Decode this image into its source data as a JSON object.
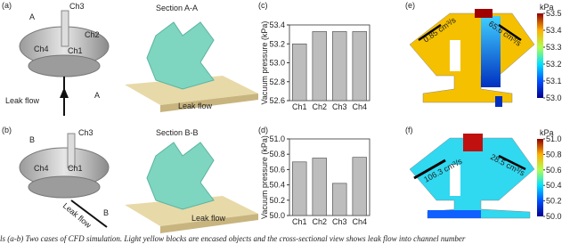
{
  "panel_labels": [
    "(a)",
    "(b)",
    "(c)",
    "(d)",
    "(e)",
    "(f)"
  ],
  "diagram_a": {
    "labels": [
      "Ch3",
      "A",
      "Ch2",
      "Ch4",
      "Ch1",
      "A"
    ],
    "flow": "Leak flow",
    "section": "Section A-A",
    "section_flow": "Leak flow"
  },
  "diagram_b": {
    "labels": [
      "Ch3",
      "B",
      "Ch4",
      "Ch1",
      "B"
    ],
    "flow": "Leak flow",
    "section": "Section B-B",
    "section_flow": "Leak flow"
  },
  "chart_data": [
    {
      "type": "bar",
      "ylabel": "Vacuum pressure (kPa)",
      "categories": [
        "Ch1",
        "Ch2",
        "Ch3",
        "Ch4"
      ],
      "values": [
        53.2,
        53.33,
        53.33,
        53.33
      ],
      "color": "#bdbdbd",
      "ylim": [
        52.6,
        53.4
      ],
      "yticks": [
        52.6,
        52.8,
        {
          "value": 53.0,
          "label": "53.0"
        },
        53.2,
        53.4
      ]
    },
    {
      "type": "bar",
      "ylabel": "Vacuum pressure (kPa)",
      "categories": [
        "Ch1",
        "Ch2",
        "Ch3",
        "Ch4"
      ],
      "values": [
        50.7,
        50.75,
        50.42,
        50.76
      ],
      "color": "#bdbdbd",
      "ylim": [
        50.0,
        51.0
      ],
      "yticks": [
        {
          "value": 50.0,
          "label": "50.0"
        },
        50.2,
        50.4,
        50.6,
        50.8,
        {
          "value": 51.0,
          "label": "51.0"
        }
      ]
    }
  ],
  "colorbars": [
    {
      "unit": "kPa",
      "lim": [
        53.0,
        53.5
      ],
      "ticks": [
        {
          "value": 53.0,
          "label": "53.0"
        },
        53.1,
        53.2,
        53.3,
        53.4,
        53.5
      ]
    },
    {
      "unit": "kPa",
      "lim": [
        50.0,
        51.0
      ],
      "ticks": [
        {
          "value": 50.0,
          "label": "50.0"
        },
        50.2,
        50.4,
        50.6,
        50.8,
        {
          "value": 51.0,
          "label": "51.0"
        }
      ]
    }
  ],
  "flow_labels": [
    "0.85 cm³/s",
    "65.6 cm³/s",
    "106.3 cm³/s",
    "28.5 cm³/s"
  ],
  "caption": "ls (a-b) Two cases of CFD simulation. Light yellow blocks are encased objects and the cross-sectional view shows leak flow into channel number"
}
